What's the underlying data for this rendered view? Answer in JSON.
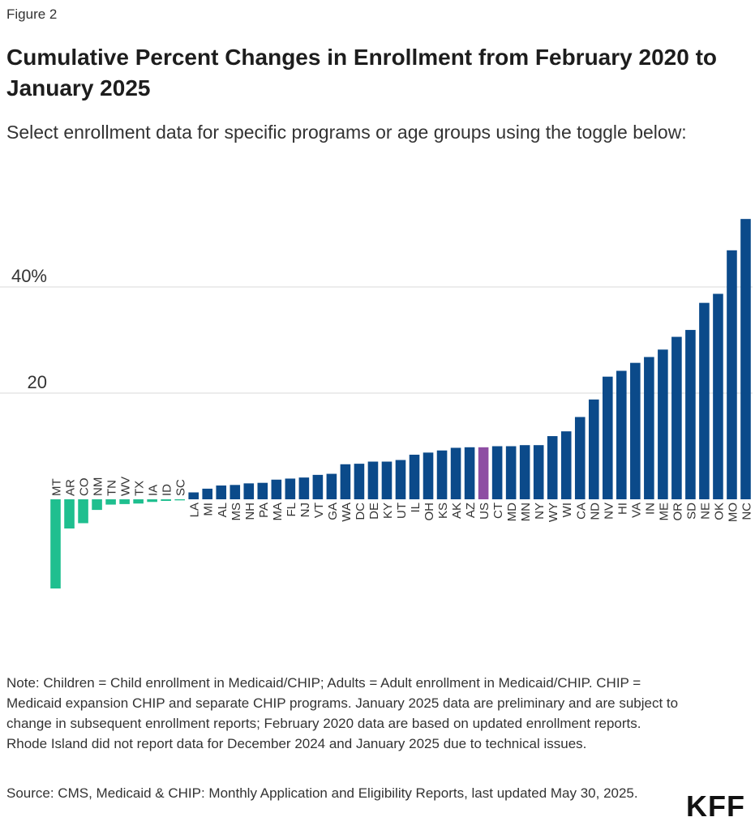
{
  "figure_label": "Figure 2",
  "title": "Cumulative Percent Changes in Enrollment from February 2020 to January 2025",
  "subtitle": "Select enrollment data for specific programs or age groups using the toggle below:",
  "note": "Note: Children = Child enrollment in Medicaid/CHIP; Adults = Adult enrollment in Medicaid/CHIP. CHIP = Medicaid expansion CHIP and separate CHIP programs. January 2025 data are preliminary and are subject to change in subsequent enrollment reports; February 2020 data are based on updated enrollment reports. Rhode Island did not report data for December 2024 and January 2025 due to technical issues.",
  "source": "Source: CMS, Medicaid & CHIP: Monthly Application and Eligibility Reports, last updated May 30, 2025.",
  "logo": "KFF",
  "colors": {
    "negative": "#1fbf8f",
    "positive": "#0b4a8a",
    "us": "#8e4ea3"
  },
  "chart_data": {
    "type": "bar",
    "ylim": [
      -20,
      55
    ],
    "yticks": [
      {
        "value": 20,
        "label": "20"
      },
      {
        "value": 40,
        "label": "40%"
      }
    ],
    "grid": true,
    "categories": [
      "MT",
      "AR",
      "CO",
      "NM",
      "TN",
      "WV",
      "TX",
      "IA",
      "ID",
      "SC",
      "LA",
      "MI",
      "AL",
      "MS",
      "NH",
      "PA",
      "MA",
      "FL",
      "NJ",
      "VT",
      "GA",
      "WA",
      "DC",
      "DE",
      "KY",
      "UT",
      "IL",
      "OH",
      "KS",
      "AK",
      "AZ",
      "US",
      "CT",
      "MD",
      "MN",
      "NY",
      "WY",
      "WI",
      "CA",
      "ND",
      "NV",
      "HI",
      "VA",
      "IN",
      "ME",
      "OR",
      "SD",
      "NE",
      "OK",
      "MO",
      "NC"
    ],
    "values": [
      -16.8,
      -5.5,
      -4.5,
      -2.0,
      -1.0,
      -0.9,
      -0.8,
      -0.5,
      -0.3,
      -0.2,
      1.3,
      2.0,
      2.6,
      2.7,
      3.0,
      3.1,
      3.7,
      3.9,
      4.1,
      4.6,
      4.8,
      6.6,
      6.7,
      7.1,
      7.1,
      7.4,
      8.4,
      8.8,
      9.2,
      9.7,
      9.8,
      9.8,
      10.0,
      10.0,
      10.2,
      10.2,
      11.9,
      12.8,
      15.5,
      18.8,
      23.1,
      24.2,
      25.7,
      26.8,
      28.2,
      30.6,
      31.9,
      37.0,
      38.7,
      46.9,
      52.8
    ]
  }
}
